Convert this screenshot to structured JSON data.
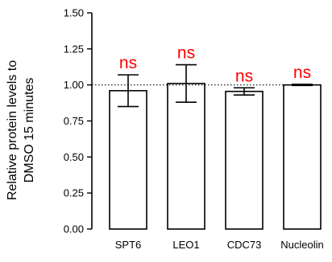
{
  "chart_data": {
    "type": "bar",
    "categories": [
      "SPT6",
      "LEO1",
      "CDC73",
      "Nucleolin"
    ],
    "values": [
      0.96,
      1.01,
      0.955,
      1.0
    ],
    "errors": [
      0.11,
      0.13,
      0.025,
      0.004
    ],
    "significance": [
      "ns",
      "ns",
      "ns",
      "ns"
    ],
    "ylabel_lines": [
      "Relative protein levels to",
      "DMSO 15 minutes"
    ],
    "yticks": [
      "0.00",
      "0.25",
      "0.50",
      "0.75",
      "1.00",
      "1.25",
      "1.50"
    ],
    "ylim": [
      0,
      1.5
    ],
    "reference_line": 1.0,
    "grid": false,
    "legend": "none",
    "colors": {
      "bar_fill": "#ffffff",
      "bar_stroke": "#000000",
      "significance": "#ff0000",
      "axis": "#000000"
    }
  }
}
